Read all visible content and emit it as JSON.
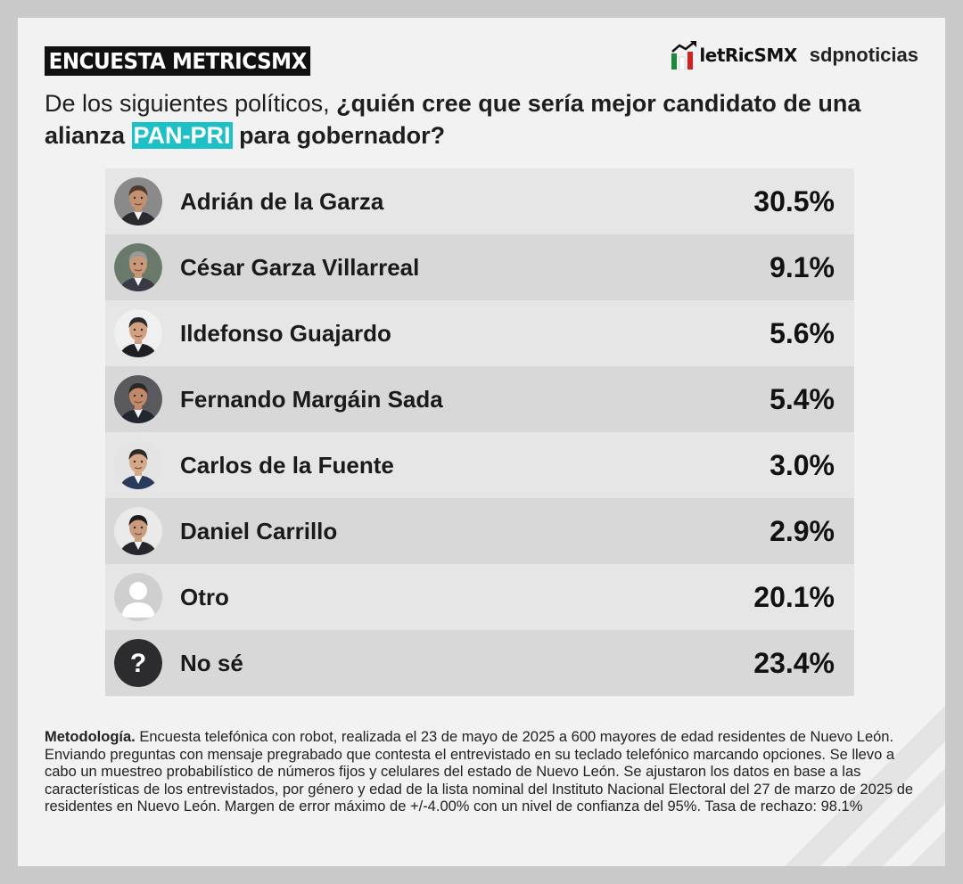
{
  "header": {
    "tag": "ENCUESTA METRICSMX",
    "logo_metrics": "letRicSMX",
    "logo_sdp": "sdpnoticias"
  },
  "question": {
    "part1": "De los siguientes políticos, ",
    "part2": "¿quién cree que sería mejor candidato de una alianza ",
    "highlight": "PAN-PRI",
    "part3": " para gobernador?"
  },
  "chart_data": {
    "type": "table",
    "categories": [
      "Adrián de la Garza",
      "César Garza Villarreal",
      "Ildefonso Guajardo",
      "Fernando Margáin Sada",
      "Carlos de la Fuente",
      "Daniel Carrillo",
      "Otro",
      "No sé"
    ],
    "values": [
      30.5,
      9.1,
      5.6,
      5.4,
      3.0,
      2.9,
      20.1,
      23.4
    ],
    "labels": [
      "30.5%",
      "9.1%",
      "5.6%",
      "5.4%",
      "3.0%",
      "2.9%",
      "20.1%",
      "23.4%"
    ]
  },
  "rows": [
    {
      "name": "Adrián de la Garza",
      "value": "30.5%",
      "avatar": "person-photo",
      "hair": "#4a3b2e",
      "skin": "#c49070",
      "suit": "#2a2a30",
      "bg": "#8a8a8a"
    },
    {
      "name": "César Garza Villarreal",
      "value": "9.1%",
      "avatar": "person-photo",
      "hair": "#9a9a9a",
      "skin": "#c89878",
      "suit": "#3a3a46",
      "bg": "#6a7a6a"
    },
    {
      "name": "Ildefonso Guajardo",
      "value": "5.6%",
      "avatar": "person-photo",
      "hair": "#2a2a2a",
      "skin": "#d0a080",
      "suit": "#1e1e24",
      "bg": "#f0f0f0"
    },
    {
      "name": "Fernando Margáin Sada",
      "value": "5.4%",
      "avatar": "person-photo",
      "hair": "#2a2622",
      "skin": "#c08a6a",
      "suit": "#22262e",
      "bg": "#5a5a5e"
    },
    {
      "name": "Carlos de la Fuente",
      "value": "3.0%",
      "avatar": "person-photo",
      "hair": "#2e2a26",
      "skin": "#d4a888",
      "suit": "#2a3a5a",
      "bg": "#e4e4e4"
    },
    {
      "name": "Daniel Carrillo",
      "value": "2.9%",
      "avatar": "person-photo",
      "hair": "#1e1c1a",
      "skin": "#c89c7c",
      "suit": "#26262c",
      "bg": "#eaeaea"
    },
    {
      "name": "Otro",
      "value": "20.1%",
      "avatar": "user-silhouette-icon",
      "bg": "#cfcfcf"
    },
    {
      "name": "No sé",
      "value": "23.4%",
      "avatar": "question-mark-icon",
      "bg": "#2c2c2e"
    }
  ],
  "methodology": {
    "label": "Metodología.",
    "text": " Encuesta telefónica con robot, realizada el 23 de mayo de 2025 a 600 mayores de edad residentes de Nuevo León. Enviando preguntas con mensaje pregrabado que contesta el entrevistado en su teclado telefónico marcando opciones. Se llevo a cabo un muestreo probabilístico de números fijos y celulares del estado de Nuevo León. Se ajustaron los datos en base a las características de los entrevistados, por género y edad de la lista nominal del Instituto Nacional Electoral del 27 de marzo de 2025 de residentes en Nuevo León. Margen de error máximo de +/-4.00% con un nivel de confianza del 95%. Tasa de rechazo: 98.1%"
  },
  "colors": {
    "accent": "#1ec0c8",
    "row_light": "#e6e6e6",
    "row_dark": "#d8d8d8",
    "background": "#f2f2f2",
    "logo_green": "#1a8a3a",
    "logo_red": "#d42020"
  }
}
